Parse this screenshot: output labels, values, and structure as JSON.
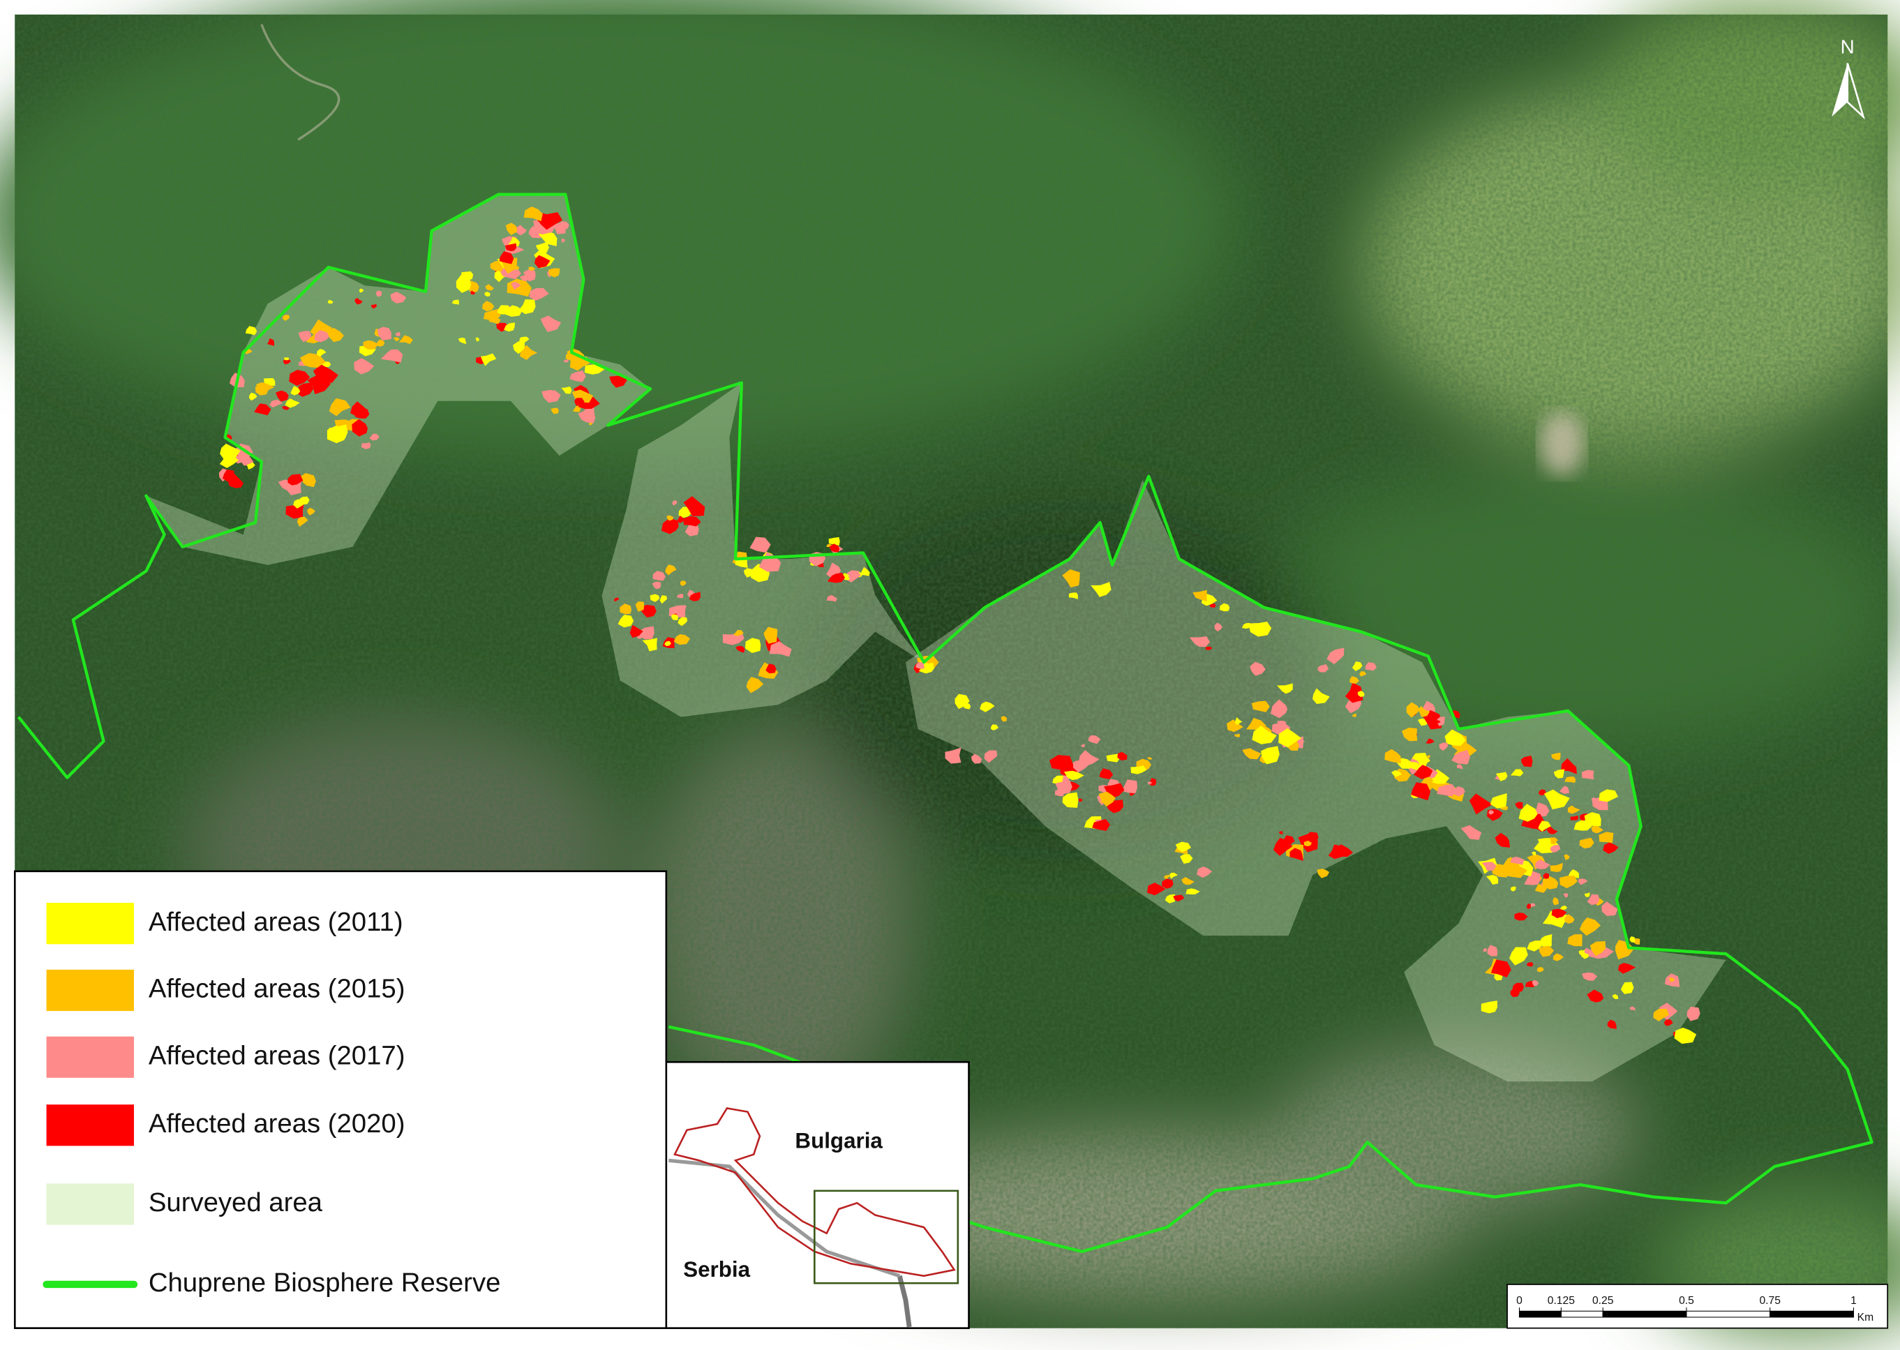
{
  "north_arrow": {
    "label": "N"
  },
  "legend": {
    "items": [
      {
        "label": "Affected areas (2011)",
        "color": "#ffff00"
      },
      {
        "label": "Affected areas (2015)",
        "color": "#ffc000"
      },
      {
        "label": "Affected areas (2017)",
        "color": "#ff8a8a"
      },
      {
        "label": "Affected areas (2020)",
        "color": "#ff0000"
      },
      {
        "label": "Surveyed area",
        "color": "#e3f5d2"
      },
      {
        "label": "Chuprene Biosphere Reserve",
        "color": "#22e61e"
      }
    ]
  },
  "inset": {
    "labels": [
      "Bulgaria",
      "Serbia"
    ]
  },
  "scale_bar": {
    "ticks": [
      0,
      0.125,
      0.25,
      0.5,
      0.75,
      1
    ],
    "unit": "Km"
  }
}
